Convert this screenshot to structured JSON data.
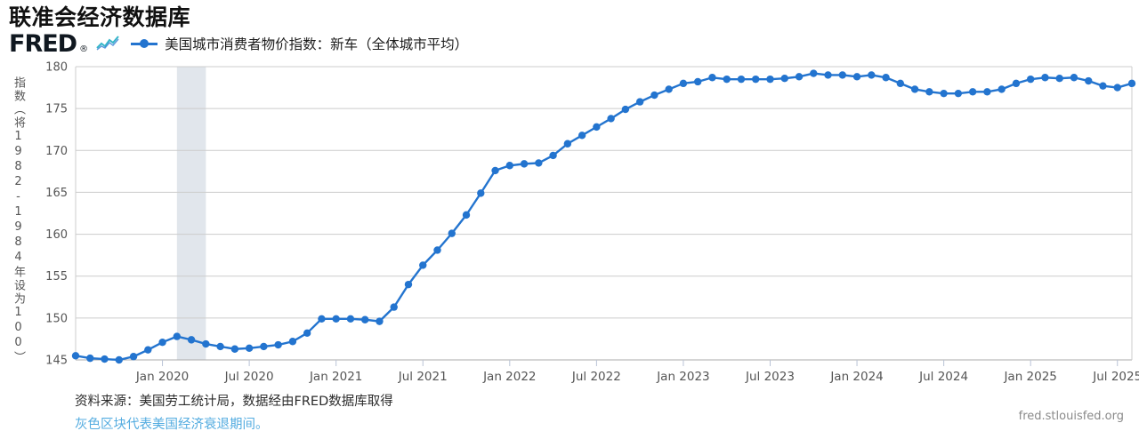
{
  "page": {
    "title": "联准会经济数据库"
  },
  "header": {
    "logo": "FRED",
    "registered_mark": "®",
    "legend": {
      "label": "美国城市消费者物价指数：新车（全体城市平均）",
      "marker_color": "#2374cf"
    }
  },
  "footer": {
    "source_line": "资料来源：美国劳工统计局，数据经由FRED数据库取得",
    "recession_note": "灰色区块代表美国经济衰退期间。",
    "site_url": "fred.stlouisfed.org"
  },
  "colors": {
    "line": "#2374cf",
    "recession_band": "#e1e6ec",
    "grid": "#cccccc",
    "axis": "#ababab",
    "tick": "#b9c3d6",
    "axis_text": "#555555",
    "link": "#54ace0"
  },
  "chart_data": {
    "type": "line",
    "title": "美国城市消费者物价指数：新车（全体城市平均）",
    "ylabel": "指数（将1982-1984年设为100）",
    "xlabel": "",
    "ylim": [
      145,
      180
    ],
    "yticks": [
      145,
      150,
      155,
      160,
      165,
      170,
      175,
      180
    ],
    "grid": true,
    "legend_position": "top-left",
    "frequency": "monthly",
    "months": [
      "2019-07",
      "2019-08",
      "2019-09",
      "2019-10",
      "2019-11",
      "2019-12",
      "2020-01",
      "2020-02",
      "2020-03",
      "2020-04",
      "2020-05",
      "2020-06",
      "2020-07",
      "2020-08",
      "2020-09",
      "2020-10",
      "2020-11",
      "2020-12",
      "2021-01",
      "2021-02",
      "2021-03",
      "2021-04",
      "2021-05",
      "2021-06",
      "2021-07",
      "2021-08",
      "2021-09",
      "2021-10",
      "2021-11",
      "2021-12",
      "2022-01",
      "2022-02",
      "2022-03",
      "2022-04",
      "2022-05",
      "2022-06",
      "2022-07",
      "2022-08",
      "2022-09",
      "2022-10",
      "2022-11",
      "2022-12",
      "2023-01",
      "2023-02",
      "2023-03",
      "2023-04",
      "2023-05",
      "2023-06",
      "2023-07",
      "2023-08",
      "2023-09",
      "2023-10",
      "2023-11",
      "2023-12",
      "2024-01",
      "2024-02",
      "2024-03",
      "2024-04",
      "2024-05",
      "2024-06",
      "2024-07",
      "2024-08",
      "2024-09",
      "2024-10",
      "2024-11",
      "2024-12",
      "2025-01",
      "2025-02",
      "2025-03",
      "2025-04",
      "2025-05",
      "2025-06",
      "2025-07",
      "2025-08"
    ],
    "values": [
      145.5,
      145.2,
      145.1,
      145.0,
      145.4,
      146.2,
      147.1,
      147.8,
      147.4,
      146.9,
      146.6,
      146.3,
      146.4,
      146.6,
      146.8,
      147.2,
      148.2,
      149.9,
      149.9,
      149.9,
      149.8,
      149.6,
      151.3,
      154.0,
      156.3,
      158.1,
      160.1,
      162.3,
      164.9,
      167.6,
      168.2,
      168.4,
      168.5,
      169.4,
      170.8,
      171.8,
      172.8,
      173.8,
      174.9,
      175.8,
      176.6,
      177.3,
      178.0,
      178.2,
      178.7,
      178.5,
      178.5,
      178.5,
      178.5,
      178.6,
      178.8,
      179.2,
      179.0,
      179.0,
      178.8,
      179.0,
      178.7,
      178.0,
      177.3,
      177.0,
      176.8,
      176.8,
      177.0,
      177.0,
      177.3,
      178.0,
      178.5,
      178.7,
      178.6,
      178.7,
      178.3,
      177.7,
      177.5,
      178.0
    ],
    "xticks": [
      {
        "label": "Jan 2020",
        "month": "2020-01"
      },
      {
        "label": "Jul 2020",
        "month": "2020-07"
      },
      {
        "label": "Jan 2021",
        "month": "2021-01"
      },
      {
        "label": "Jul 2021",
        "month": "2021-07"
      },
      {
        "label": "Jan 2022",
        "month": "2022-01"
      },
      {
        "label": "Jul 2022",
        "month": "2022-07"
      },
      {
        "label": "Jan 2023",
        "month": "2023-01"
      },
      {
        "label": "Jul 2023",
        "month": "2023-07"
      },
      {
        "label": "Jan 2024",
        "month": "2024-01"
      },
      {
        "label": "Jul 2024",
        "month": "2024-07"
      },
      {
        "label": "Jan 2025",
        "month": "2025-01"
      },
      {
        "label": "Jul 2025",
        "month": "2025-07"
      }
    ],
    "recession_band": {
      "from": "2020-02",
      "to": "2020-04"
    }
  }
}
